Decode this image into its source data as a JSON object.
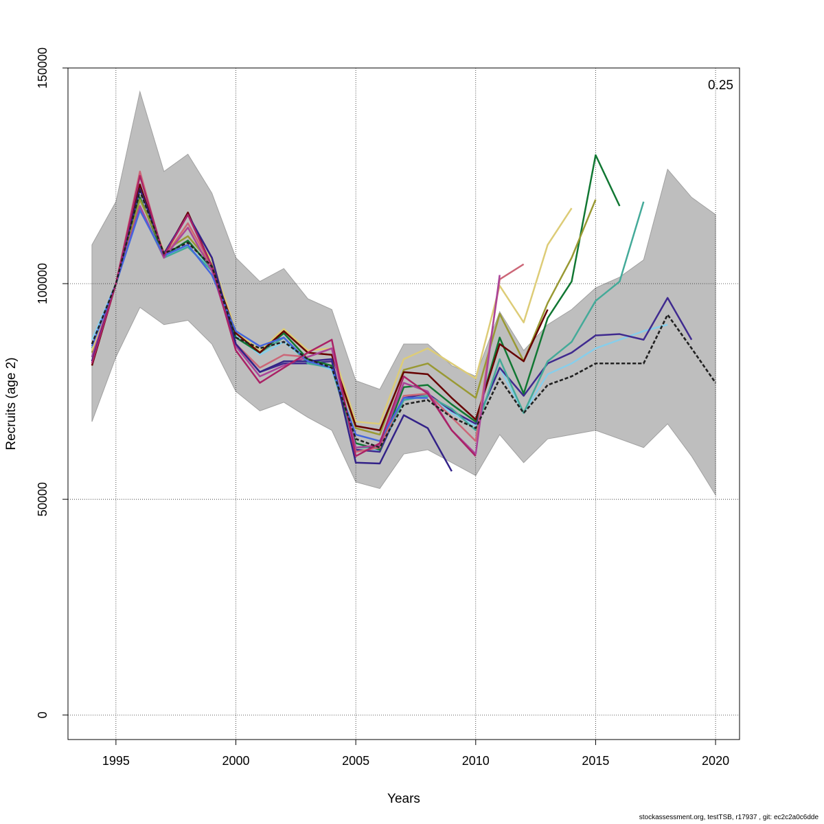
{
  "chart_data": {
    "type": "line",
    "xlabel": "Years",
    "ylabel": "Recruits (age 2)",
    "annotation": "0.25",
    "xlim": [
      1993,
      2021
    ],
    "ylim": [
      -5700,
      150000
    ],
    "x_ticks": [
      1995,
      2000,
      2005,
      2010,
      2015,
      2020
    ],
    "y_ticks": [
      0,
      50000,
      100000,
      150000
    ],
    "grid": true,
    "band": {
      "fill": "#bebebe",
      "x": [
        1994,
        1995,
        1996,
        1997,
        1998,
        1999,
        2000,
        2001,
        2002,
        2003,
        2004,
        2005,
        2006,
        2007,
        2008,
        2009,
        2010,
        2011,
        2012,
        2013,
        2014,
        2015,
        2016,
        2017,
        2018,
        2019,
        2020
      ],
      "upper": [
        109000,
        119000,
        144500,
        126000,
        130000,
        121000,
        106000,
        100500,
        103500,
        96500,
        94000,
        77500,
        75500,
        86000,
        86000,
        81000,
        78500,
        93500,
        84500,
        90500,
        94000,
        99000,
        101500,
        105500,
        126500,
        120000,
        116000
      ],
      "lower": [
        68000,
        83000,
        94500,
        90500,
        91500,
        86000,
        75000,
        70500,
        72500,
        69000,
        66000,
        54000,
        52500,
        60500,
        61500,
        58500,
        55500,
        65000,
        58500,
        64000,
        65000,
        66000,
        64000,
        62000,
        67500,
        60000,
        51000
      ]
    },
    "series": [
      {
        "color": "#222222",
        "dashed": true,
        "width": 2.5,
        "x": [
          1994,
          1995,
          1996,
          1997,
          1998,
          1999,
          2000,
          2001,
          2002,
          2003,
          2004,
          2005,
          2006,
          2007,
          2008,
          2009,
          2010,
          2011,
          2012,
          2013,
          2014,
          2015,
          2016,
          2017,
          2018,
          2019,
          2020
        ],
        "values": [
          86000,
          100000,
          121500,
          107000,
          109500,
          104000,
          87500,
          85000,
          86500,
          82500,
          80500,
          64000,
          62000,
          72000,
          73000,
          69000,
          66500,
          78000,
          70000,
          76500,
          78500,
          81500,
          81500,
          81500,
          92800,
          85000,
          77000
        ]
      },
      {
        "color": "#87ceeb",
        "x": [
          1994,
          1995,
          1996,
          1997,
          1998,
          1999,
          2000,
          2001,
          2002,
          2003,
          2004,
          2005,
          2006,
          2007,
          2008,
          2009,
          2010,
          2011,
          2012,
          2013,
          2014,
          2015,
          2016,
          2017,
          2018
        ],
        "values": [
          87000,
          100000,
          118000,
          106500,
          108500,
          103500,
          88000,
          83500,
          86500,
          82000,
          80000,
          63000,
          61000,
          73000,
          74000,
          70000,
          67000,
          80500,
          70000,
          79000,
          81500,
          85000,
          87000,
          89000,
          90500
        ]
      },
      {
        "color": "#3f2a8f",
        "x": [
          1994,
          1995,
          1996,
          1997,
          1998,
          1999,
          2000,
          2001,
          2002,
          2003,
          2004,
          2005,
          2006,
          2007,
          2008,
          2009,
          2010,
          2011,
          2012,
          2013,
          2014,
          2015,
          2016,
          2017,
          2018,
          2019
        ],
        "values": [
          82000,
          100000,
          122000,
          107000,
          116000,
          106000,
          86000,
          79500,
          81500,
          81500,
          82000,
          61500,
          61000,
          73500,
          74500,
          70500,
          67500,
          80500,
          74000,
          81500,
          84000,
          88000,
          88300,
          87000,
          96700,
          87000
        ]
      },
      {
        "color": "#44aa99",
        "x": [
          1994,
          1995,
          1996,
          1997,
          1998,
          1999,
          2000,
          2001,
          2002,
          2003,
          2004,
          2005,
          2006,
          2007,
          2008,
          2009,
          2010,
          2011,
          2012,
          2013,
          2014,
          2015,
          2016,
          2017
        ],
        "values": [
          85000,
          100000,
          117500,
          106000,
          108500,
          103000,
          87500,
          84000,
          87500,
          81500,
          80500,
          62000,
          62000,
          73000,
          74000,
          71000,
          66000,
          82500,
          70000,
          82000,
          86500,
          96000,
          100500,
          119000
        ]
      },
      {
        "color": "#117733",
        "x": [
          1994,
          1995,
          1996,
          1997,
          1998,
          1999,
          2000,
          2001,
          2002,
          2003,
          2004,
          2005,
          2006,
          2007,
          2008,
          2009,
          2010,
          2011,
          2012,
          2013,
          2014,
          2015,
          2016
        ],
        "values": [
          83000,
          100000,
          120000,
          106500,
          110000,
          103500,
          87500,
          84000,
          88500,
          82500,
          81000,
          63000,
          61500,
          76000,
          76500,
          72000,
          68000,
          87500,
          74500,
          92000,
          100500,
          129800,
          118000
        ]
      },
      {
        "color": "#999933",
        "x": [
          1994,
          1995,
          1996,
          1997,
          1998,
          1999,
          2000,
          2001,
          2002,
          2003,
          2004,
          2005,
          2006,
          2007,
          2008,
          2009,
          2010,
          2011,
          2012,
          2013,
          2014,
          2015
        ],
        "values": [
          84000,
          100000,
          119500,
          107500,
          111000,
          104500,
          88500,
          84500,
          89000,
          84000,
          83500,
          66500,
          65000,
          80000,
          81500,
          77500,
          73500,
          93000,
          82000,
          95500,
          106000,
          119500
        ]
      },
      {
        "color": "#ddcc77",
        "x": [
          1994,
          1995,
          1996,
          1997,
          1998,
          1999,
          2000,
          2001,
          2002,
          2003,
          2004,
          2005,
          2006,
          2007,
          2008,
          2009,
          2010,
          2011,
          2012,
          2013,
          2014
        ],
        "values": [
          84500,
          100000,
          122000,
          107500,
          113000,
          105500,
          89000,
          84500,
          89500,
          84500,
          85000,
          68000,
          67500,
          82500,
          85000,
          81500,
          78000,
          99500,
          91000,
          109000,
          117500
        ]
      },
      {
        "color": "#660000",
        "x": [
          1994,
          1995,
          1996,
          1997,
          1998,
          1999,
          2000,
          2001,
          2002,
          2003,
          2004,
          2005,
          2006,
          2007,
          2008,
          2009,
          2010,
          2011,
          2012,
          2013
        ],
        "values": [
          81000,
          100000,
          123000,
          106500,
          116500,
          104000,
          88500,
          84000,
          89000,
          84000,
          83500,
          67000,
          66000,
          79500,
          79000,
          73500,
          68500,
          86000,
          82000,
          94000
        ]
      },
      {
        "color": "#cc6677",
        "x": [
          1994,
          1995,
          1996,
          1997,
          1998,
          1999,
          2000,
          2001,
          2002,
          2003,
          2004,
          2005,
          2006,
          2007,
          2008,
          2009,
          2010,
          2011,
          2012
        ],
        "values": [
          82000,
          100000,
          126000,
          106000,
          114000,
          104000,
          86000,
          80500,
          83500,
          83000,
          85000,
          61000,
          62000,
          74000,
          74500,
          69000,
          63500,
          101000,
          104500
        ]
      },
      {
        "color": "#aa4499",
        "x": [
          1994,
          1995,
          1996,
          1997,
          1998,
          1999,
          2000,
          2001,
          2002,
          2003,
          2004,
          2005,
          2006,
          2007,
          2008,
          2009,
          2010,
          2011
        ],
        "values": [
          83000,
          100000,
          118000,
          106000,
          113000,
          103000,
          85500,
          78500,
          81000,
          83000,
          85000,
          62000,
          62500,
          77000,
          75000,
          66000,
          60500,
          102000
        ]
      },
      {
        "color": "#332288",
        "x": [
          1994,
          1995,
          1996,
          1997,
          1998,
          1999,
          2000,
          2001,
          2002,
          2003,
          2004,
          2005,
          2006,
          2007,
          2008,
          2009
        ],
        "values": [
          82000,
          100000,
          122000,
          107000,
          116000,
          106000,
          86000,
          79500,
          82000,
          82000,
          82500,
          58500,
          58300,
          69500,
          66500,
          56500
        ]
      },
      {
        "color": "#4466dd",
        "x": [
          1994,
          1995,
          1996,
          1997,
          1998,
          1999,
          2000,
          2001,
          2002,
          2003,
          2004,
          2005,
          2006,
          2007,
          2008
        ],
        "values": [
          85500,
          100000,
          117000,
          106500,
          109000,
          102000,
          89000,
          85500,
          87500,
          82000,
          80500,
          65000,
          63500,
          73500,
          73500
        ]
      },
      {
        "color": "#aa2266",
        "x": [
          1994,
          1995,
          1996,
          1997,
          1998,
          1999,
          2000,
          2001,
          2002,
          2003,
          2004,
          2005,
          2006,
          2007,
          2008,
          2009,
          2010
        ],
        "values": [
          81500,
          100000,
          125000,
          106500,
          116000,
          104000,
          84500,
          77000,
          80500,
          84000,
          87000,
          60000,
          63000,
          78500,
          74500,
          66000,
          60000
        ]
      }
    ]
  },
  "footer_text": "stockassessment.org, testTSB, r17937 , git: ec2c2a0c6dde"
}
